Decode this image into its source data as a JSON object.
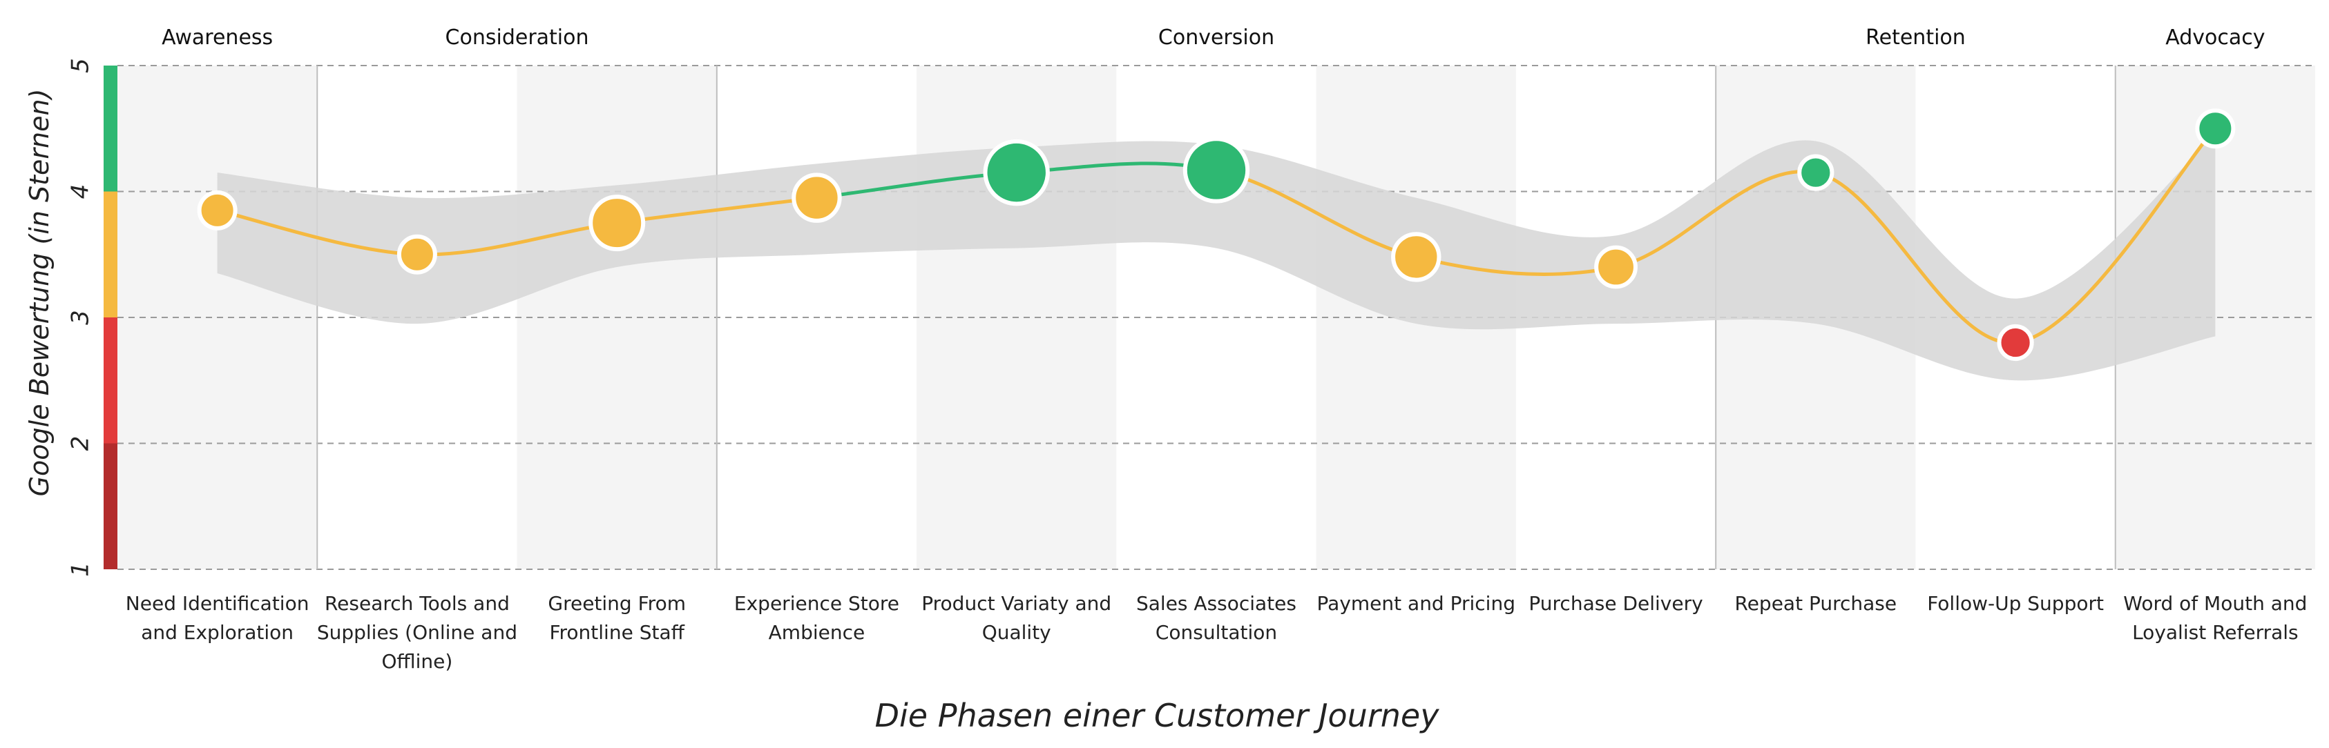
{
  "chart_data": {
    "type": "line",
    "title": "",
    "xlabel": "Die Phasen einer Customer Journey",
    "ylabel": "Google Bewertung (in Sternen)",
    "ylim": [
      1,
      5
    ],
    "yticks": [
      "1",
      "2",
      "3",
      "4",
      "5"
    ],
    "grid": true,
    "phases": [
      {
        "label": "Awareness",
        "span": [
          0,
          0
        ]
      },
      {
        "label": "Consideration",
        "span": [
          1,
          2
        ]
      },
      {
        "label": "Conversion",
        "span": [
          3,
          7
        ]
      },
      {
        "label": "Retention",
        "span": [
          8,
          9
        ]
      },
      {
        "label": "Advocacy",
        "span": [
          10,
          10
        ]
      }
    ],
    "categories": [
      [
        "Need Identification",
        "and Exploration"
      ],
      [
        "Research Tools and",
        "Supplies (Online and",
        "Offline)"
      ],
      [
        "Greeting From",
        "Frontline Staff"
      ],
      [
        "Experience Store",
        "Ambience"
      ],
      [
        "Product Variaty and",
        "Quality"
      ],
      [
        "Sales Associates",
        "Consultation"
      ],
      [
        "Payment and Pricing"
      ],
      [
        "Purchase Delivery"
      ],
      [
        "Repeat Purchase"
      ],
      [
        "Follow-Up Support"
      ],
      [
        "Word of Mouth and",
        "Loyalist Referrals"
      ]
    ],
    "values": [
      3.85,
      3.5,
      3.75,
      3.95,
      4.15,
      4.17,
      3.48,
      3.4,
      4.15,
      2.8,
      4.5
    ],
    "relative_size": [
      1,
      1,
      2,
      1.6,
      2.6,
      2.6,
      1.6,
      1.2,
      0.8,
      0.8,
      1
    ],
    "band_upper": [
      4.15,
      3.95,
      4.05,
      4.22,
      4.35,
      4.37,
      3.95,
      3.65,
      4.4,
      3.15,
      4.45
    ],
    "band_lower": [
      3.35,
      2.95,
      3.4,
      3.5,
      3.55,
      3.55,
      2.95,
      2.95,
      2.95,
      2.5,
      2.85
    ],
    "colors": {
      "good": "#2eb872",
      "medium": "#f5b940",
      "bad": "#e23b3b",
      "very_bad": "#b32c2c",
      "band": "#d6d6d6",
      "grid": "#9a9a9a"
    },
    "color_thresholds": {
      "good": 4,
      "medium": 3,
      "bad": 2
    }
  }
}
